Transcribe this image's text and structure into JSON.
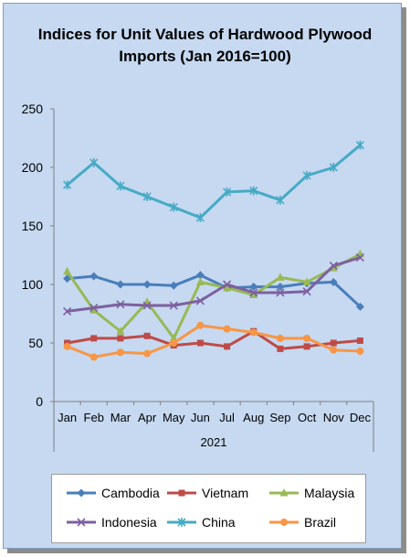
{
  "chart_data": {
    "type": "line",
    "title": "Indices for Unit Values of Hardwood Plywood Imports (Jan 2016=100)",
    "x_group_label": "2021",
    "categories": [
      "Jan",
      "Feb",
      "Mar",
      "Apr",
      "May",
      "Jun",
      "Jul",
      "Aug",
      "Sep",
      "Oct",
      "Nov",
      "Dec"
    ],
    "ylim": [
      0,
      250
    ],
    "yticks": [
      0,
      50,
      100,
      150,
      200,
      250
    ],
    "grid": false,
    "legend_position": "bottom",
    "series": [
      {
        "name": "Cambodia",
        "color": "#4a7ebb",
        "marker": "diamond",
        "values": [
          105,
          107,
          100,
          100,
          99,
          108,
          97,
          98,
          98,
          101,
          102,
          81
        ]
      },
      {
        "name": "Vietnam",
        "color": "#be4b48",
        "marker": "square",
        "values": [
          50,
          54,
          54,
          56,
          48,
          50,
          47,
          60,
          45,
          47,
          50,
          52
        ]
      },
      {
        "name": "Malaysia",
        "color": "#98b954",
        "marker": "triangle",
        "values": [
          111,
          78,
          60,
          85,
          54,
          102,
          97,
          91,
          106,
          102,
          114,
          126
        ]
      },
      {
        "name": "Indonesia",
        "color": "#7d60a0",
        "marker": "x",
        "values": [
          77,
          80,
          83,
          82,
          82,
          86,
          100,
          93,
          93,
          94,
          116,
          123
        ]
      },
      {
        "name": "China",
        "color": "#46aac5",
        "marker": "star",
        "values": [
          185,
          204,
          184,
          175,
          166,
          157,
          179,
          180,
          172,
          193,
          200,
          219
        ]
      },
      {
        "name": "Brazil",
        "color": "#f79646",
        "marker": "circle",
        "values": [
          47,
          38,
          42,
          41,
          50,
          65,
          62,
          59,
          54,
          54,
          44,
          43
        ]
      }
    ]
  }
}
